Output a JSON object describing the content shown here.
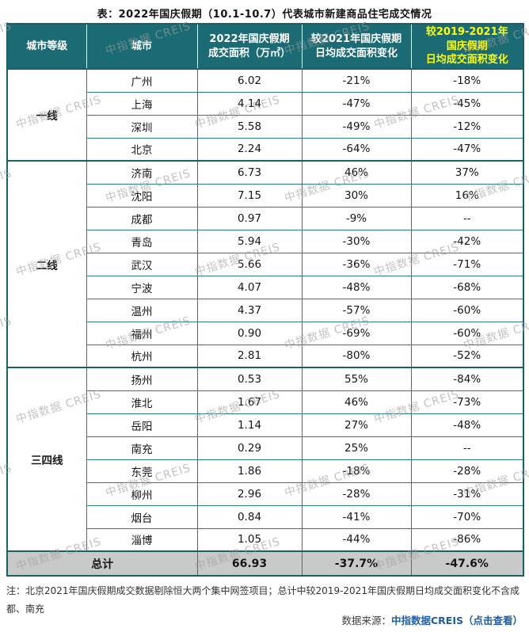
{
  "page": {
    "title": "表：2022年国庆假期（10.1-10.7）代表城市新建商品住宅成交情况",
    "note": "注：北京2021年国庆假期成交数据剔除恒大两个集中网签项目；总计中较2019-2021年国庆假期日均成交面积变化不含成都、南充",
    "source_prefix": "数据来源：",
    "source_link": "中指数据CREIS（点击查看）",
    "watermark_text": "中指数据 CREIS"
  },
  "colors": {
    "header_bg": "#1B6B74",
    "header_text": "#FFFFFF",
    "header_highlight": "#FFFF00",
    "border": "#2B7A88",
    "border_strong": "#17616B",
    "total_bg": "#C9C9C9",
    "source_link_blue": "#1F5CA8",
    "watermark_gray": "#9E9E9E"
  },
  "chart_data": {
    "type": "table",
    "title": "表：2022年国庆假期（10.1-10.7）代表城市新建商品住宅成交情况",
    "columns": [
      "城市等级",
      "城市",
      "2022年国庆假期成交面积（万㎡）",
      "较2021年国庆假期日均成交面积变化",
      "较2019-2021年国庆假期日均成交面积变化"
    ],
    "header_lines": [
      [
        "城市等级"
      ],
      [
        "城市"
      ],
      [
        "2022年国庆假期",
        "成交面积（万㎡）"
      ],
      [
        "较2021年国庆假期",
        "日均成交面积变化"
      ],
      [
        "较2019-2021年",
        "国庆假期",
        "日均成交面积变化"
      ]
    ],
    "groups": [
      {
        "tier": "一线",
        "rows": [
          {
            "city": "广州",
            "area": "6.02",
            "vs_2021": "-21%",
            "vs_2019_2021": "-18%"
          },
          {
            "city": "上海",
            "area": "4.14",
            "vs_2021": "-47%",
            "vs_2019_2021": "-45%"
          },
          {
            "city": "深圳",
            "area": "5.58",
            "vs_2021": "-49%",
            "vs_2019_2021": "-12%"
          },
          {
            "city": "北京",
            "area": "2.24",
            "vs_2021": "-64%",
            "vs_2019_2021": "-47%"
          }
        ]
      },
      {
        "tier": "二线",
        "rows": [
          {
            "city": "济南",
            "area": "6.73",
            "vs_2021": "46%",
            "vs_2019_2021": "37%"
          },
          {
            "city": "沈阳",
            "area": "7.15",
            "vs_2021": "30%",
            "vs_2019_2021": "16%"
          },
          {
            "city": "成都",
            "area": "0.97",
            "vs_2021": "-9%",
            "vs_2019_2021": "--"
          },
          {
            "city": "青岛",
            "area": "5.94",
            "vs_2021": "-30%",
            "vs_2019_2021": "-42%"
          },
          {
            "city": "武汉",
            "area": "5.66",
            "vs_2021": "-36%",
            "vs_2019_2021": "-71%"
          },
          {
            "city": "宁波",
            "area": "4.07",
            "vs_2021": "-48%",
            "vs_2019_2021": "-68%"
          },
          {
            "city": "温州",
            "area": "4.37",
            "vs_2021": "-57%",
            "vs_2019_2021": "-60%"
          },
          {
            "city": "福州",
            "area": "0.90",
            "vs_2021": "-69%",
            "vs_2019_2021": "-60%"
          },
          {
            "city": "杭州",
            "area": "2.81",
            "vs_2021": "-80%",
            "vs_2019_2021": "-52%"
          }
        ]
      },
      {
        "tier": "三四线",
        "rows": [
          {
            "city": "扬州",
            "area": "0.53",
            "vs_2021": "55%",
            "vs_2019_2021": "-84%"
          },
          {
            "city": "淮北",
            "area": "1.67",
            "vs_2021": "46%",
            "vs_2019_2021": "-73%"
          },
          {
            "city": "岳阳",
            "area": "1.14",
            "vs_2021": "27%",
            "vs_2019_2021": "-48%"
          },
          {
            "city": "南充",
            "area": "0.29",
            "vs_2021": "25%",
            "vs_2019_2021": "--"
          },
          {
            "city": "东莞",
            "area": "1.86",
            "vs_2021": "-18%",
            "vs_2019_2021": "-28%"
          },
          {
            "city": "柳州",
            "area": "2.96",
            "vs_2021": "-28%",
            "vs_2019_2021": "-31%"
          },
          {
            "city": "烟台",
            "area": "0.84",
            "vs_2021": "-41%",
            "vs_2019_2021": "-70%"
          },
          {
            "city": "淄博",
            "area": "1.05",
            "vs_2021": "-44%",
            "vs_2019_2021": "-86%"
          }
        ]
      }
    ],
    "total": {
      "label": "总计",
      "area": "66.93",
      "vs_2021": "-37.7%",
      "vs_2019_2021": "-47.6%"
    }
  }
}
